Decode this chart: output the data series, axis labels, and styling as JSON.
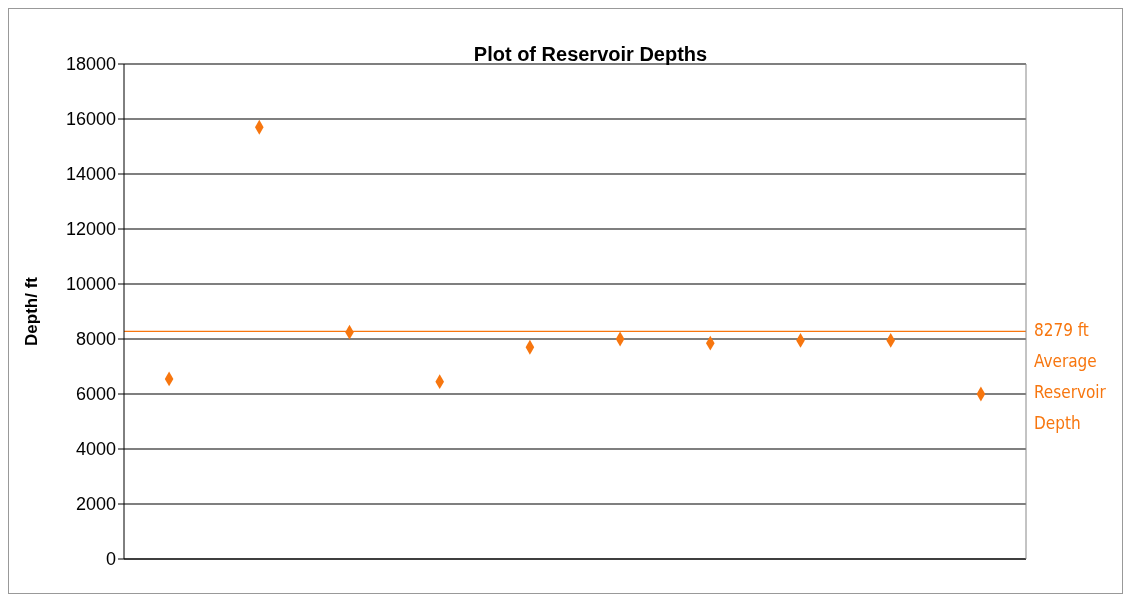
{
  "chart_data": {
    "type": "scatter",
    "title": "Plot of Reservoir Depths",
    "ylabel": "Depth/ ft",
    "categories": [
      null,
      null,
      null,
      null,
      null,
      null,
      null,
      null,
      null,
      null
    ],
    "series": [
      {
        "color": "#f7760f",
        "values": [
          6550,
          15700,
          8250,
          6450,
          7700,
          8000,
          7850,
          7950,
          7950,
          6000
        ]
      }
    ],
    "ylim": [
      0,
      18000
    ],
    "yticks": [
      0,
      2000,
      4000,
      6000,
      8000,
      10000,
      12000,
      14000,
      16000,
      18000
    ],
    "grid": "y",
    "tick_labels": "y",
    "marker": "diamond",
    "ref_lines": [
      {
        "axis": "y",
        "value": 8279,
        "label": "8279 ft Average Reservoir Depth",
        "color": "#f7760f"
      }
    ]
  }
}
